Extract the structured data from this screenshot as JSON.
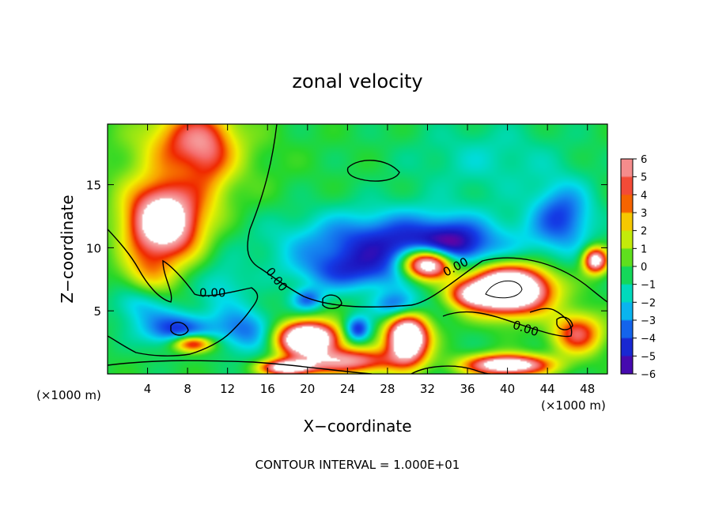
{
  "chart_data": {
    "type": "heatmap",
    "title": "zonal velocity",
    "xlabel": "X−coordinate",
    "ylabel": "Z−coordinate",
    "x_unit": "(×1000 m)",
    "x_unit_right": "(×1000 m)",
    "xlim": [
      0,
      50
    ],
    "ylim": [
      0,
      19.8
    ],
    "x_ticks": [
      4,
      8,
      12,
      16,
      20,
      24,
      28,
      32,
      36,
      40,
      44,
      48
    ],
    "y_ticks": [
      5,
      10,
      15
    ],
    "colorbar": {
      "min": -6,
      "max": 6,
      "ticks": [
        "6",
        "5",
        "4",
        "3",
        "2",
        "1",
        "0",
        "−1",
        "−2",
        "−3",
        "−4",
        "−5",
        "−6"
      ]
    },
    "contour_labels": [
      {
        "text": "0.00",
        "x": 10.5,
        "z": 6.1
      },
      {
        "text": "0.00",
        "x": 16.6,
        "z": 7.3
      },
      {
        "text": "0.00",
        "x": 35.0,
        "z": 8.2
      },
      {
        "text": "0.00",
        "x": 41.7,
        "z": 3.3
      }
    ],
    "blobs": [
      {
        "x": 5.6,
        "z": 12.0,
        "v": 9.0,
        "sx": 3.6,
        "sz": 2.9
      },
      {
        "x": 8.5,
        "z": 18.6,
        "v": 3.6,
        "sx": 4.0,
        "sz": 2.4
      },
      {
        "x": 10.2,
        "z": 16.5,
        "v": 1.7,
        "sx": 2.2,
        "sz": 3.5
      },
      {
        "x": 4.0,
        "z": 8.0,
        "v": 2.2,
        "sx": 2.6,
        "sz": 1.8
      },
      {
        "x": 29.5,
        "z": 10.2,
        "v": -4.6,
        "sx": 11.0,
        "sz": 2.6
      },
      {
        "x": 34.5,
        "z": 10.3,
        "v": -2.2,
        "sx": 3.0,
        "sz": 1.6
      },
      {
        "x": 45.5,
        "z": 12.5,
        "v": -3.4,
        "sx": 3.0,
        "sz": 2.6
      },
      {
        "x": 48.8,
        "z": 9.0,
        "v": 8.0,
        "sx": 1.2,
        "sz": 1.0
      },
      {
        "x": 32.0,
        "z": 8.7,
        "v": 11.0,
        "sx": 2.5,
        "sz": 1.2
      },
      {
        "x": 40.0,
        "z": 6.7,
        "v": 13.0,
        "sx": 4.0,
        "sz": 1.8
      },
      {
        "x": 20.0,
        "z": 2.8,
        "v": 11.0,
        "sx": 3.0,
        "sz": 1.3
      },
      {
        "x": 30.0,
        "z": 2.8,
        "v": 11.0,
        "sx": 2.0,
        "sz": 1.8
      },
      {
        "x": 25.0,
        "z": 3.5,
        "v": -4.4,
        "sx": 1.3,
        "sz": 1.0
      },
      {
        "x": 24.0,
        "z": 1.0,
        "v": 6.0,
        "sx": 5.0,
        "sz": 1.0
      },
      {
        "x": 8.5,
        "z": 2.4,
        "v": 6.5,
        "sx": 2.0,
        "sz": 0.7
      },
      {
        "x": 7.0,
        "z": 3.5,
        "v": -4.0,
        "sx": 3.5,
        "sz": 1.4
      },
      {
        "x": 14.0,
        "z": 3.4,
        "v": -3.0,
        "sx": 3.0,
        "sz": 1.8
      },
      {
        "x": 20.0,
        "z": 5.9,
        "v": -3.0,
        "sx": 1.6,
        "sz": 0.9
      },
      {
        "x": 29.0,
        "z": 5.4,
        "v": -3.4,
        "sx": 2.3,
        "sz": 1.1
      },
      {
        "x": 36.0,
        "z": 6.3,
        "v": 3.6,
        "sx": 2.0,
        "sz": 1.0
      },
      {
        "x": 47.0,
        "z": 3.2,
        "v": 5.0,
        "sx": 2.5,
        "sz": 1.6
      },
      {
        "x": 40.0,
        "z": 0.7,
        "v": 9.0,
        "sx": 4.0,
        "sz": 0.8
      },
      {
        "x": 18.0,
        "z": 0.5,
        "v": 8.0,
        "sx": 2.5,
        "sz": 0.6
      },
      {
        "x": 3.0,
        "z": 5.5,
        "v": -2.0,
        "sx": 2.5,
        "sz": 1.5
      },
      {
        "x": 38.0,
        "z": 17.0,
        "v": -1.2,
        "sx": 8.0,
        "sz": 3.0
      },
      {
        "x": 24.0,
        "z": 8.0,
        "v": -2.3,
        "sx": 5.0,
        "sz": 1.5
      },
      {
        "x": 11.5,
        "z": 6.8,
        "v": -1.6,
        "sx": 2.5,
        "sz": 2.0
      }
    ]
  },
  "footer": {
    "interval_text": "CONTOUR INTERVAL = 1.000E+01"
  }
}
